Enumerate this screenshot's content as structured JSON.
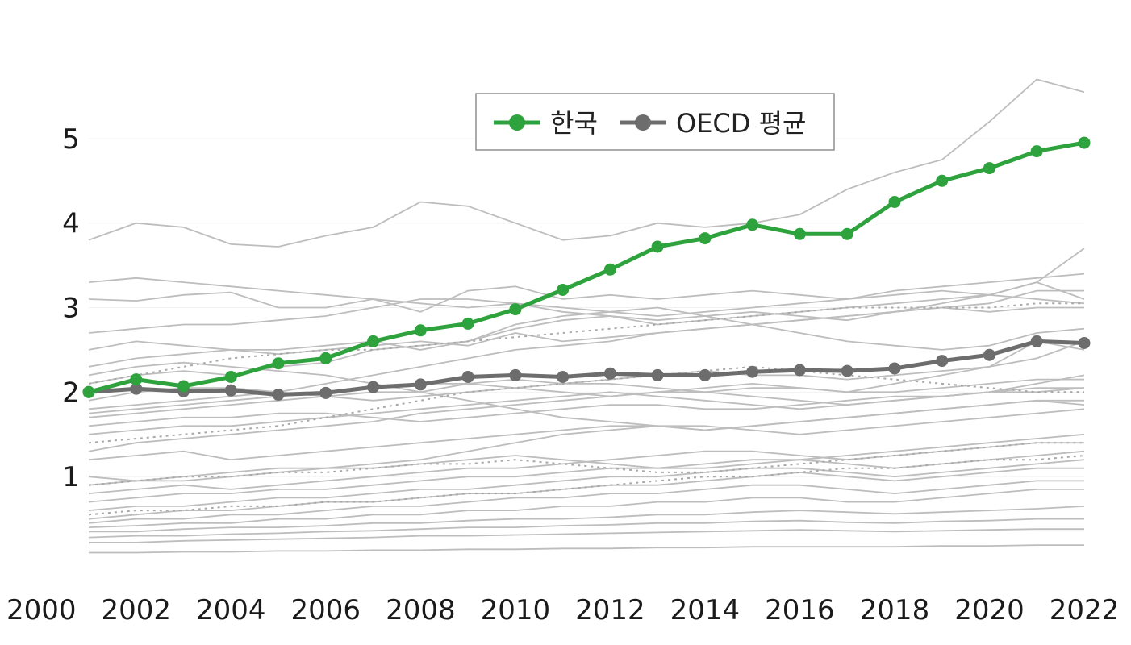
{
  "chart_data": {
    "type": "line",
    "x": [
      2001,
      2002,
      2003,
      2004,
      2005,
      2006,
      2007,
      2008,
      2009,
      2010,
      2011,
      2012,
      2013,
      2014,
      2015,
      2016,
      2017,
      2018,
      2019,
      2020,
      2021,
      2022
    ],
    "xticks": [
      "2000",
      "2002",
      "2004",
      "2006",
      "2008",
      "2010",
      "2012",
      "2014",
      "2016",
      "2018",
      "2020",
      "2022"
    ],
    "yticks": [
      "1",
      "2",
      "3",
      "4",
      "5"
    ],
    "xlim": [
      2000,
      2022
    ],
    "ylim": [
      0,
      5.8
    ],
    "grid": false,
    "legend_position": "top-center",
    "series": [
      {
        "name": "한국",
        "color": "#2ea23c",
        "values": [
          2.0,
          2.15,
          2.07,
          2.18,
          2.34,
          2.4,
          2.6,
          2.73,
          2.81,
          2.98,
          3.21,
          3.45,
          3.72,
          3.82,
          3.98,
          3.87,
          3.87,
          4.25,
          4.5,
          4.65,
          4.85,
          4.95
        ]
      },
      {
        "name": "OECD 평균",
        "color": "#6d6d6d",
        "values": [
          2.0,
          2.04,
          2.01,
          2.02,
          1.97,
          1.99,
          2.06,
          2.09,
          2.18,
          2.2,
          2.18,
          2.22,
          2.2,
          2.2,
          2.24,
          2.26,
          2.25,
          2.28,
          2.37,
          2.44,
          2.6,
          2.58
        ]
      }
    ],
    "background_series": [
      [
        3.8,
        4.0,
        3.95,
        3.75,
        3.72,
        3.85,
        3.95,
        4.25,
        4.2,
        4.0,
        3.8,
        3.85,
        4.0,
        3.95,
        4.0,
        4.1,
        4.4,
        4.6,
        4.75,
        5.2,
        5.7,
        5.55
      ],
      [
        3.1,
        3.08,
        3.15,
        3.18,
        3.0,
        3.0,
        3.1,
        2.95,
        3.2,
        3.25,
        3.1,
        3.15,
        3.1,
        3.15,
        3.2,
        3.15,
        3.1,
        3.2,
        3.25,
        3.3,
        3.35,
        3.4
      ],
      [
        2.7,
        2.75,
        2.8,
        2.8,
        2.85,
        2.9,
        3.0,
        3.1,
        3.1,
        3.05,
        2.95,
        2.9,
        2.8,
        2.85,
        2.9,
        2.95,
        3.0,
        3.05,
        3.1,
        3.15,
        3.3,
        3.7
      ],
      [
        2.5,
        2.6,
        2.55,
        2.5,
        2.45,
        2.5,
        2.55,
        2.6,
        2.55,
        2.7,
        2.6,
        2.65,
        2.7,
        2.75,
        2.8,
        2.85,
        2.9,
        2.95,
        3.0,
        3.05,
        3.2,
        3.2
      ],
      [
        2.3,
        2.4,
        2.45,
        2.5,
        2.5,
        2.55,
        2.6,
        2.5,
        2.6,
        2.75,
        2.85,
        2.9,
        2.85,
        2.9,
        2.95,
        2.9,
        2.85,
        2.95,
        3.05,
        3.15,
        3.3,
        3.1
      ],
      [
        2.1,
        2.2,
        2.25,
        2.2,
        2.3,
        2.35,
        2.5,
        2.55,
        2.6,
        2.8,
        2.9,
        2.95,
        3.0,
        2.9,
        2.8,
        2.7,
        2.6,
        2.55,
        2.5,
        2.55,
        2.7,
        2.75
      ],
      [
        1.8,
        1.85,
        1.9,
        1.95,
        2.0,
        2.1,
        2.2,
        2.3,
        2.4,
        2.5,
        2.55,
        2.6,
        2.7,
        2.75,
        2.8,
        2.85,
        2.9,
        2.95,
        3.0,
        2.95,
        3.0,
        3.0
      ],
      [
        1.75,
        1.8,
        1.85,
        1.9,
        1.95,
        2.0,
        2.05,
        2.1,
        2.1,
        2.15,
        2.1,
        2.15,
        2.2,
        2.25,
        2.2,
        2.2,
        2.15,
        2.2,
        2.25,
        2.3,
        2.6,
        2.5
      ],
      [
        1.7,
        1.75,
        1.8,
        1.85,
        1.9,
        1.95,
        2.0,
        2.0,
        2.1,
        2.05,
        2.0,
        1.95,
        2.0,
        2.05,
        2.1,
        2.05,
        2.0,
        2.1,
        2.2,
        2.3,
        2.4,
        2.6
      ],
      [
        1.5,
        1.55,
        1.6,
        1.6,
        1.65,
        1.7,
        1.75,
        1.8,
        1.85,
        1.9,
        1.95,
        2.0,
        1.95,
        1.9,
        1.85,
        1.8,
        1.85,
        1.9,
        1.95,
        2.0,
        2.1,
        2.2
      ],
      [
        1.3,
        1.4,
        1.45,
        1.5,
        1.55,
        1.6,
        1.65,
        1.75,
        1.8,
        1.85,
        1.9,
        1.95,
        2.0,
        2.0,
        2.05,
        2.05,
        2.0,
        2.0,
        2.05,
        2.1,
        2.15,
        2.15
      ],
      [
        1.9,
        2.0,
        2.05,
        2.05,
        2.0,
        1.95,
        1.9,
        1.95,
        2.0,
        2.05,
        2.1,
        2.1,
        2.05,
        2.0,
        1.95,
        1.9,
        1.85,
        1.9,
        1.95,
        2.0,
        2.05,
        2.05
      ],
      [
        1.6,
        1.65,
        1.7,
        1.7,
        1.75,
        1.75,
        1.7,
        1.65,
        1.7,
        1.75,
        1.8,
        1.85,
        1.85,
        1.8,
        1.8,
        1.85,
        1.9,
        1.95,
        1.95,
        2.0,
        2.0,
        2.05
      ],
      [
        1.2,
        1.25,
        1.3,
        1.2,
        1.25,
        1.3,
        1.35,
        1.4,
        1.45,
        1.5,
        1.55,
        1.6,
        1.6,
        1.55,
        1.6,
        1.65,
        1.7,
        1.75,
        1.8,
        1.85,
        1.9,
        1.85
      ],
      [
        1.0,
        0.95,
        1.0,
        1.05,
        1.1,
        1.1,
        1.15,
        1.2,
        1.3,
        1.4,
        1.5,
        1.55,
        1.6,
        1.6,
        1.55,
        1.5,
        1.55,
        1.6,
        1.65,
        1.7,
        1.75,
        1.8
      ],
      [
        0.9,
        0.95,
        0.95,
        1.0,
        1.05,
        1.1,
        1.1,
        1.15,
        1.2,
        1.25,
        1.2,
        1.15,
        1.1,
        1.1,
        1.15,
        1.2,
        1.25,
        1.3,
        1.35,
        1.4,
        1.45,
        1.5
      ],
      [
        0.8,
        0.85,
        0.9,
        0.85,
        0.9,
        0.95,
        1.0,
        1.05,
        1.1,
        1.1,
        1.15,
        1.2,
        1.25,
        1.3,
        1.3,
        1.25,
        1.2,
        1.25,
        1.3,
        1.35,
        1.4,
        1.4
      ],
      [
        0.7,
        0.75,
        0.8,
        0.8,
        0.85,
        0.85,
        0.9,
        0.95,
        1.0,
        1.0,
        1.05,
        1.1,
        1.1,
        1.15,
        1.2,
        1.2,
        1.15,
        1.1,
        1.15,
        1.2,
        1.25,
        1.3
      ],
      [
        0.6,
        0.65,
        0.65,
        0.7,
        0.75,
        0.75,
        0.8,
        0.85,
        0.85,
        0.9,
        0.95,
        1.0,
        1.0,
        1.05,
        1.1,
        1.1,
        1.05,
        1.0,
        1.05,
        1.1,
        1.15,
        1.2
      ],
      [
        0.5,
        0.55,
        0.6,
        0.6,
        0.65,
        0.7,
        0.7,
        0.75,
        0.8,
        0.8,
        0.85,
        0.9,
        0.9,
        0.95,
        1.0,
        1.05,
        1.0,
        0.95,
        1.0,
        1.05,
        1.1,
        1.1
      ],
      [
        0.45,
        0.5,
        0.5,
        0.55,
        0.55,
        0.6,
        0.65,
        0.65,
        0.7,
        0.75,
        0.75,
        0.8,
        0.8,
        0.85,
        0.9,
        0.9,
        0.85,
        0.8,
        0.85,
        0.9,
        0.95,
        0.95
      ],
      [
        0.4,
        0.42,
        0.45,
        0.45,
        0.5,
        0.5,
        0.55,
        0.55,
        0.6,
        0.6,
        0.65,
        0.65,
        0.7,
        0.7,
        0.75,
        0.75,
        0.7,
        0.7,
        0.75,
        0.8,
        0.85,
        0.85
      ],
      [
        0.35,
        0.35,
        0.38,
        0.4,
        0.4,
        0.42,
        0.45,
        0.45,
        0.48,
        0.5,
        0.5,
        0.52,
        0.55,
        0.55,
        0.58,
        0.6,
        0.58,
        0.56,
        0.58,
        0.6,
        0.62,
        0.65
      ],
      [
        0.28,
        0.3,
        0.3,
        0.32,
        0.33,
        0.35,
        0.36,
        0.38,
        0.4,
        0.4,
        0.42,
        0.43,
        0.45,
        0.45,
        0.47,
        0.48,
        0.46,
        0.45,
        0.47,
        0.48,
        0.5,
        0.5
      ],
      [
        0.22,
        0.22,
        0.24,
        0.25,
        0.26,
        0.27,
        0.28,
        0.3,
        0.3,
        0.31,
        0.32,
        0.33,
        0.34,
        0.35,
        0.36,
        0.37,
        0.36,
        0.35,
        0.36,
        0.37,
        0.38,
        0.38
      ],
      [
        0.1,
        0.1,
        0.11,
        0.11,
        0.12,
        0.12,
        0.13,
        0.13,
        0.14,
        0.14,
        0.15,
        0.15,
        0.16,
        0.16,
        0.17,
        0.17,
        0.17,
        0.17,
        0.18,
        0.18,
        0.19,
        0.19
      ],
      [
        2.2,
        2.3,
        2.35,
        2.3,
        2.25,
        2.2,
        2.1,
        2.0,
        1.9,
        1.8,
        1.7,
        1.65,
        1.6,
        1.55,
        1.6,
        1.65,
        1.7,
        1.75,
        1.8,
        1.85,
        1.9,
        1.9
      ],
      [
        3.3,
        3.35,
        3.3,
        3.25,
        3.2,
        3.15,
        3.1,
        3.05,
        3.0,
        3.05,
        3.0,
        2.95,
        2.9,
        2.95,
        3.0,
        3.05,
        3.1,
        3.15,
        3.2,
        3.15,
        3.1,
        3.05
      ]
    ],
    "background_dotted": [
      [
        2.1,
        2.2,
        2.3,
        2.4,
        2.45,
        2.5,
        2.5,
        2.55,
        2.6,
        2.65,
        2.7,
        2.75,
        2.8,
        2.85,
        2.9,
        2.95,
        3.0,
        3.0,
        3.0,
        3.0,
        3.05,
        3.05
      ],
      [
        1.4,
        1.45,
        1.5,
        1.55,
        1.6,
        1.7,
        1.8,
        1.9,
        2.0,
        2.05,
        2.1,
        2.15,
        2.2,
        2.25,
        2.3,
        2.25,
        2.2,
        2.15,
        2.1,
        2.05,
        2.0,
        2.0
      ],
      [
        0.9,
        0.95,
        1.0,
        1.0,
        1.05,
        1.05,
        1.1,
        1.15,
        1.15,
        1.2,
        1.15,
        1.1,
        1.05,
        1.05,
        1.1,
        1.15,
        1.2,
        1.25,
        1.3,
        1.35,
        1.4,
        1.4
      ],
      [
        0.55,
        0.6,
        0.6,
        0.65,
        0.65,
        0.7,
        0.7,
        0.75,
        0.8,
        0.8,
        0.85,
        0.9,
        0.95,
        1.0,
        1.0,
        1.05,
        1.1,
        1.1,
        1.15,
        1.2,
        1.2,
        1.25
      ]
    ]
  }
}
